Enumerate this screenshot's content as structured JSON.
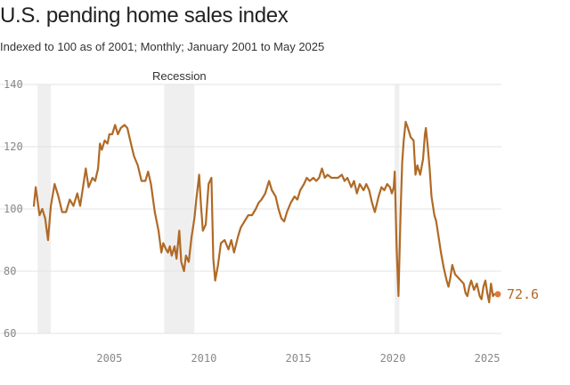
{
  "header": {
    "title": "U.S. pending home sales index",
    "subtitle": "Indexed to 100 as of 2001; Monthly; January 2001 to May 2025"
  },
  "colors": {
    "line": "#b06a26",
    "recession": "#efefef",
    "grid": "#e3e3e3",
    "end_dot": "#e07a3a"
  },
  "chart_data": {
    "type": "line",
    "title": "U.S. pending home sales index",
    "subtitle": "Indexed to 100 as of 2001; Monthly; January 2001 to May 2025",
    "xlabel": "",
    "ylabel": "",
    "xlim": [
      2001.0,
      2025.75
    ],
    "ylim": [
      60,
      140
    ],
    "y_ticks": [
      60,
      80,
      100,
      120,
      140
    ],
    "x_ticks": [
      2005,
      2010,
      2015,
      2020,
      2025
    ],
    "grid": true,
    "recession_label": "Recession",
    "recessions": [
      {
        "start": 2001.2,
        "end": 2001.9
      },
      {
        "start": 2007.9,
        "end": 2009.5
      },
      {
        "start": 2020.1,
        "end": 2020.35
      }
    ],
    "end_label": "72.6",
    "points": [
      [
        2001.0,
        101
      ],
      [
        2001.1,
        107
      ],
      [
        2001.3,
        98
      ],
      [
        2001.45,
        100
      ],
      [
        2001.6,
        97
      ],
      [
        2001.75,
        90
      ],
      [
        2001.9,
        101
      ],
      [
        2002.1,
        108
      ],
      [
        2002.3,
        104
      ],
      [
        2002.5,
        99
      ],
      [
        2002.7,
        99
      ],
      [
        2002.9,
        103
      ],
      [
        2003.1,
        101
      ],
      [
        2003.3,
        105
      ],
      [
        2003.45,
        101
      ],
      [
        2003.6,
        107
      ],
      [
        2003.75,
        113
      ],
      [
        2003.9,
        107
      ],
      [
        2004.1,
        110
      ],
      [
        2004.25,
        109
      ],
      [
        2004.4,
        113
      ],
      [
        2004.5,
        121
      ],
      [
        2004.6,
        119
      ],
      [
        2004.75,
        122
      ],
      [
        2004.9,
        121
      ],
      [
        2005.0,
        124
      ],
      [
        2005.15,
        124
      ],
      [
        2005.3,
        127
      ],
      [
        2005.45,
        124
      ],
      [
        2005.6,
        126
      ],
      [
        2005.8,
        127
      ],
      [
        2005.95,
        126
      ],
      [
        2006.1,
        122
      ],
      [
        2006.3,
        117
      ],
      [
        2006.5,
        114
      ],
      [
        2006.7,
        109
      ],
      [
        2006.9,
        109
      ],
      [
        2007.05,
        112
      ],
      [
        2007.2,
        108
      ],
      [
        2007.4,
        99
      ],
      [
        2007.6,
        93
      ],
      [
        2007.75,
        86
      ],
      [
        2007.85,
        89
      ],
      [
        2008.0,
        87
      ],
      [
        2008.1,
        86
      ],
      [
        2008.2,
        88
      ],
      [
        2008.3,
        85
      ],
      [
        2008.45,
        88
      ],
      [
        2008.55,
        84
      ],
      [
        2008.7,
        93
      ],
      [
        2008.8,
        83
      ],
      [
        2008.95,
        80
      ],
      [
        2009.05,
        85
      ],
      [
        2009.2,
        83
      ],
      [
        2009.35,
        91
      ],
      [
        2009.5,
        97
      ],
      [
        2009.6,
        103
      ],
      [
        2009.75,
        111
      ],
      [
        2009.85,
        101
      ],
      [
        2009.95,
        93
      ],
      [
        2010.1,
        95
      ],
      [
        2010.25,
        108
      ],
      [
        2010.4,
        110
      ],
      [
        2010.5,
        84
      ],
      [
        2010.6,
        77
      ],
      [
        2010.75,
        82
      ],
      [
        2010.9,
        89
      ],
      [
        2011.1,
        90
      ],
      [
        2011.3,
        87
      ],
      [
        2011.45,
        90
      ],
      [
        2011.6,
        86
      ],
      [
        2011.8,
        91
      ],
      [
        2011.95,
        94
      ],
      [
        2012.15,
        96
      ],
      [
        2012.35,
        98
      ],
      [
        2012.55,
        98
      ],
      [
        2012.75,
        100
      ],
      [
        2012.9,
        102
      ],
      [
        2013.05,
        103
      ],
      [
        2013.25,
        105
      ],
      [
        2013.45,
        109
      ],
      [
        2013.6,
        106
      ],
      [
        2013.8,
        104
      ],
      [
        2013.95,
        100
      ],
      [
        2014.1,
        97
      ],
      [
        2014.25,
        96
      ],
      [
        2014.4,
        99
      ],
      [
        2014.6,
        102
      ],
      [
        2014.8,
        104
      ],
      [
        2014.95,
        103
      ],
      [
        2015.1,
        106
      ],
      [
        2015.3,
        108
      ],
      [
        2015.45,
        110
      ],
      [
        2015.6,
        109
      ],
      [
        2015.8,
        110
      ],
      [
        2015.95,
        109
      ],
      [
        2016.1,
        110
      ],
      [
        2016.25,
        113
      ],
      [
        2016.4,
        110
      ],
      [
        2016.55,
        111
      ],
      [
        2016.75,
        110
      ],
      [
        2016.9,
        110
      ],
      [
        2017.1,
        110
      ],
      [
        2017.3,
        111
      ],
      [
        2017.45,
        109
      ],
      [
        2017.6,
        110
      ],
      [
        2017.8,
        107
      ],
      [
        2017.95,
        109
      ],
      [
        2018.1,
        105
      ],
      [
        2018.25,
        108
      ],
      [
        2018.45,
        106
      ],
      [
        2018.6,
        108
      ],
      [
        2018.75,
        106
      ],
      [
        2018.9,
        102
      ],
      [
        2019.05,
        99
      ],
      [
        2019.25,
        104
      ],
      [
        2019.4,
        107
      ],
      [
        2019.55,
        106
      ],
      [
        2019.7,
        108
      ],
      [
        2019.85,
        107
      ],
      [
        2019.95,
        105
      ],
      [
        2020.05,
        107
      ],
      [
        2020.1,
        112
      ],
      [
        2020.2,
        88
      ],
      [
        2020.3,
        72
      ],
      [
        2020.42,
        100
      ],
      [
        2020.5,
        115
      ],
      [
        2020.58,
        122
      ],
      [
        2020.68,
        128
      ],
      [
        2020.8,
        126
      ],
      [
        2020.95,
        123
      ],
      [
        2021.1,
        122
      ],
      [
        2021.2,
        111
      ],
      [
        2021.3,
        114
      ],
      [
        2021.45,
        111
      ],
      [
        2021.6,
        116
      ],
      [
        2021.7,
        124
      ],
      [
        2021.75,
        126
      ],
      [
        2021.85,
        120
      ],
      [
        2021.95,
        113
      ],
      [
        2022.05,
        104
      ],
      [
        2022.2,
        98
      ],
      [
        2022.3,
        96
      ],
      [
        2022.45,
        90
      ],
      [
        2022.55,
        86
      ],
      [
        2022.7,
        81
      ],
      [
        2022.85,
        77
      ],
      [
        2022.95,
        75
      ],
      [
        2023.05,
        78
      ],
      [
        2023.15,
        82
      ],
      [
        2023.3,
        79
      ],
      [
        2023.45,
        78
      ],
      [
        2023.6,
        77
      ],
      [
        2023.75,
        76
      ],
      [
        2023.85,
        73
      ],
      [
        2023.95,
        72
      ],
      [
        2024.05,
        75
      ],
      [
        2024.15,
        77
      ],
      [
        2024.3,
        74
      ],
      [
        2024.45,
        76
      ],
      [
        2024.6,
        72
      ],
      [
        2024.7,
        71
      ],
      [
        2024.8,
        75
      ],
      [
        2024.9,
        77
      ],
      [
        2025.0,
        73
      ],
      [
        2025.1,
        70
      ],
      [
        2025.2,
        76
      ],
      [
        2025.3,
        72
      ],
      [
        2025.37,
        72.6
      ]
    ]
  }
}
